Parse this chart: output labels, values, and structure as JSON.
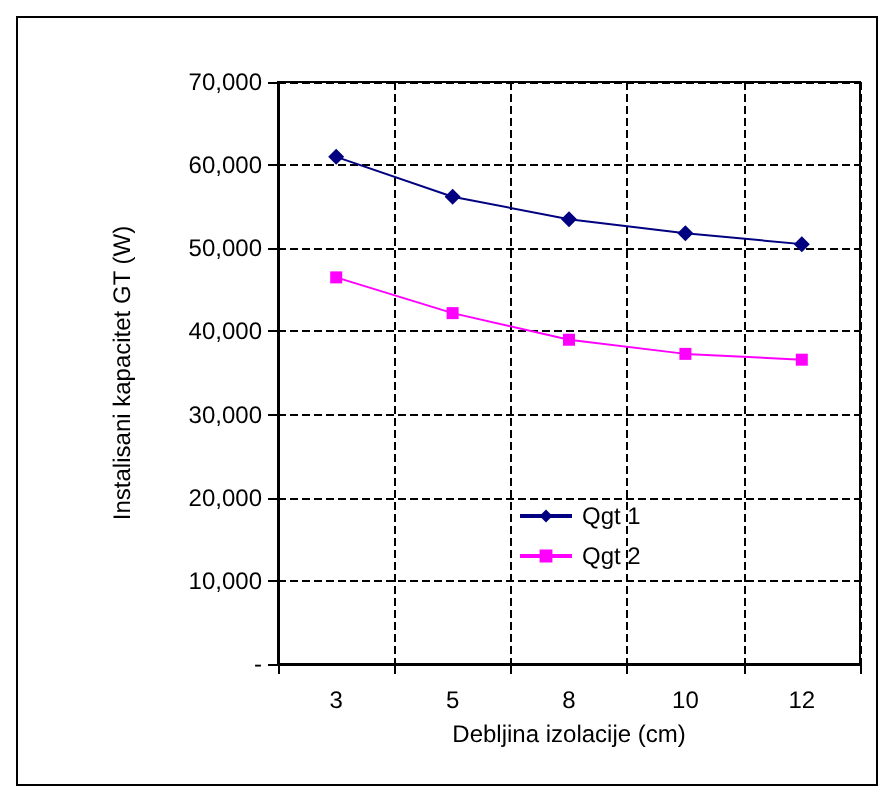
{
  "chart_data": {
    "type": "line",
    "xlabel": "Debljina izolacije (cm)",
    "ylabel": "Instalisani kapacitet GT (W)",
    "categories": [
      "3",
      "5",
      "8",
      "10",
      "12"
    ],
    "series": [
      {
        "name": "Qgt 1",
        "color": "#000080",
        "marker": "diamond",
        "values": [
          61000,
          56200,
          53500,
          51800,
          50500
        ]
      },
      {
        "name": "Qgt 2",
        "color": "#ff00ff",
        "marker": "square",
        "values": [
          46500,
          42200,
          39000,
          37300,
          36600
        ]
      }
    ],
    "ylim": [
      0,
      70000
    ],
    "yticks": [
      {
        "value": 0,
        "label": "-"
      },
      {
        "value": 10000,
        "label": "10,000"
      },
      {
        "value": 20000,
        "label": "20,000"
      },
      {
        "value": 30000,
        "label": "30,000"
      },
      {
        "value": 40000,
        "label": "40,000"
      },
      {
        "value": 50000,
        "label": "50,000"
      },
      {
        "value": 60000,
        "label": "60,000"
      },
      {
        "value": 70000,
        "label": "70,000"
      }
    ],
    "grid": true,
    "legend": "center",
    "line_style": "solid"
  }
}
